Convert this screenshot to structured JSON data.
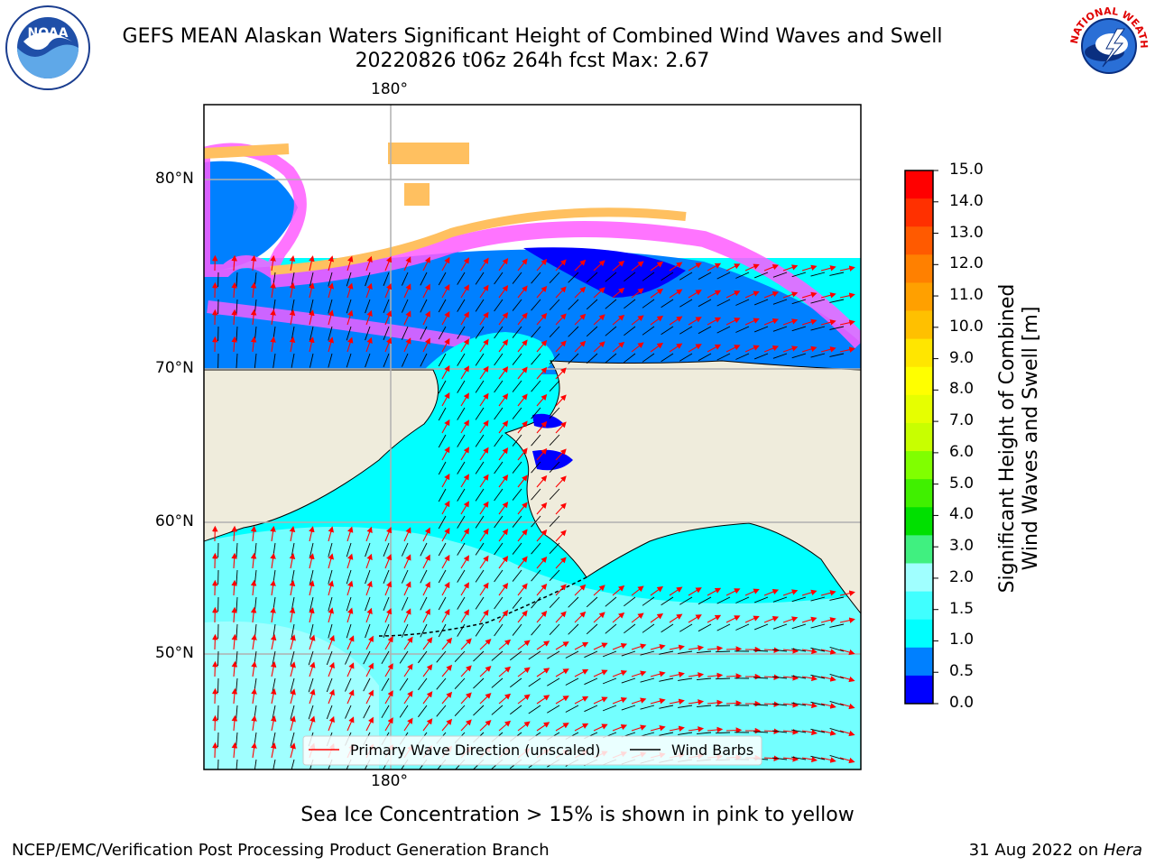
{
  "header": {
    "title_line1": "GEFS MEAN Alaskan Waters Significant Height of Combined Wind Waves and Swell",
    "title_line2": "20220826 t06z 264h fcst   Max: 2.67"
  },
  "logos": {
    "left": {
      "icon": "noaa-logo-icon",
      "text": "NOAA"
    },
    "right": {
      "icon": "nws-logo-icon",
      "text": "NATIONAL WEATHER SERVICE"
    }
  },
  "map": {
    "top_lon_label": "180°",
    "bottom_lon_label": "180°",
    "lat_labels": [
      "80°N",
      "70°N",
      "60°N",
      "50°N"
    ],
    "colors": {
      "land": "#efecdc",
      "ocean_low": "#00ffff",
      "ocean_mid": "#7fffff",
      "deep_blue": "#0000ff",
      "mid_blue": "#0080ff",
      "ice_pink": "#ff5cff",
      "ice_orange": "#ffc060",
      "ice_yellow": "#ffff00",
      "wave_arrow": "#ff0000",
      "wind_barb": "#000000",
      "grid": "#b0b0b0"
    },
    "legend": {
      "items": [
        {
          "label": "Primary Wave Direction (unscaled)",
          "color": "#ff0000"
        },
        {
          "label": "Wind Barbs",
          "color": "#000000"
        }
      ]
    }
  },
  "colorbar": {
    "label_line1": "Significant Height of Combined",
    "label_line2": "Wind Waves and Swell [m]",
    "ticks": [
      "15.0",
      "14.0",
      "13.0",
      "12.0",
      "11.0",
      "10.0",
      "9.0",
      "8.0",
      "7.0",
      "6.0",
      "5.0",
      "4.0",
      "3.0",
      "2.0",
      "1.5",
      "1.0",
      "0.5",
      "0.0"
    ],
    "colors_top_to_bottom": [
      "#ff0000",
      "#ff3000",
      "#ff5a00",
      "#ff8000",
      "#ffa000",
      "#ffc000",
      "#ffe600",
      "#ffff00",
      "#e6ff00",
      "#c8ff00",
      "#80ff00",
      "#40f000",
      "#00e000",
      "#40f080",
      "#a0ffff",
      "#40ffff",
      "#00ffff",
      "#0080ff",
      "#0000ff"
    ]
  },
  "note": "Sea Ice Concentration > 15% is shown in pink to yellow",
  "footer": {
    "left": "NCEP/EMC/Verification Post Processing Product Generation Branch",
    "right_prefix": "31 Aug 2022 on ",
    "right_italic": "Hera"
  }
}
